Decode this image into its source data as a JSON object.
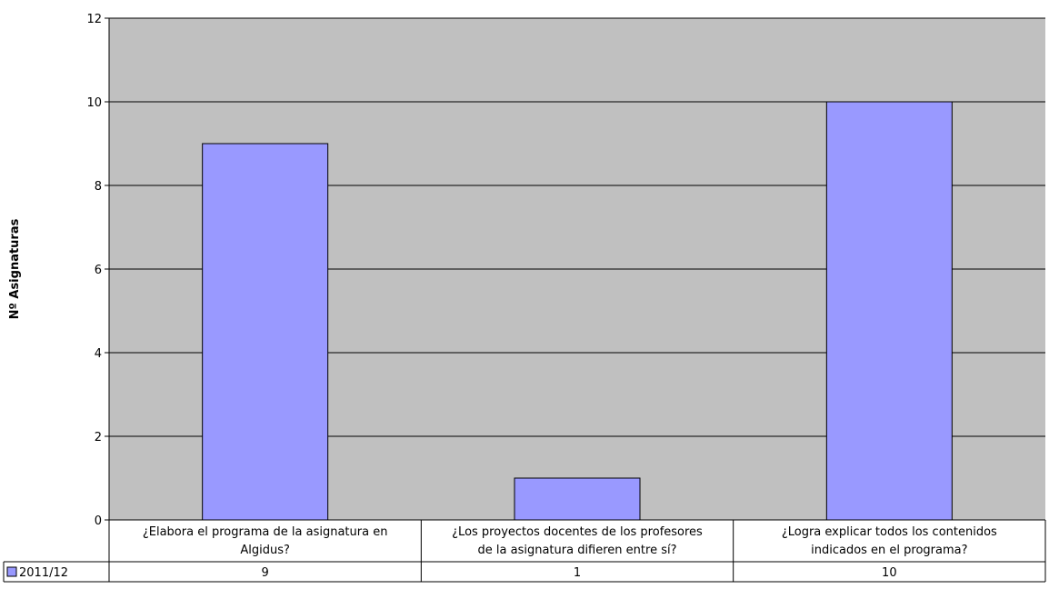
{
  "chart_data": {
    "type": "bar",
    "title": "",
    "xlabel": "",
    "ylabel": "Nº Asignaturas",
    "ylim": [
      0,
      12
    ],
    "yticks": [
      "0",
      "2",
      "4",
      "6",
      "8",
      "10",
      "12"
    ],
    "grid": true,
    "categories": [
      [
        "¿Elabora el programa de la asignatura en",
        "Algidus?"
      ],
      [
        "¿Los proyectos docentes de los profesores",
        "de la asignatura difieren entre sí?"
      ],
      [
        "¿Logra explicar todos los contenidos",
        "indicados en el programa?"
      ]
    ],
    "series": [
      {
        "name": "2011/12",
        "values": [
          9,
          1,
          10
        ],
        "value_labels": [
          "9",
          "1",
          "10"
        ]
      }
    ],
    "legend": "data-table",
    "colors": {
      "bar": "#9999ff",
      "plot_background": "#c0c0c0",
      "gridline": "#000000"
    }
  }
}
